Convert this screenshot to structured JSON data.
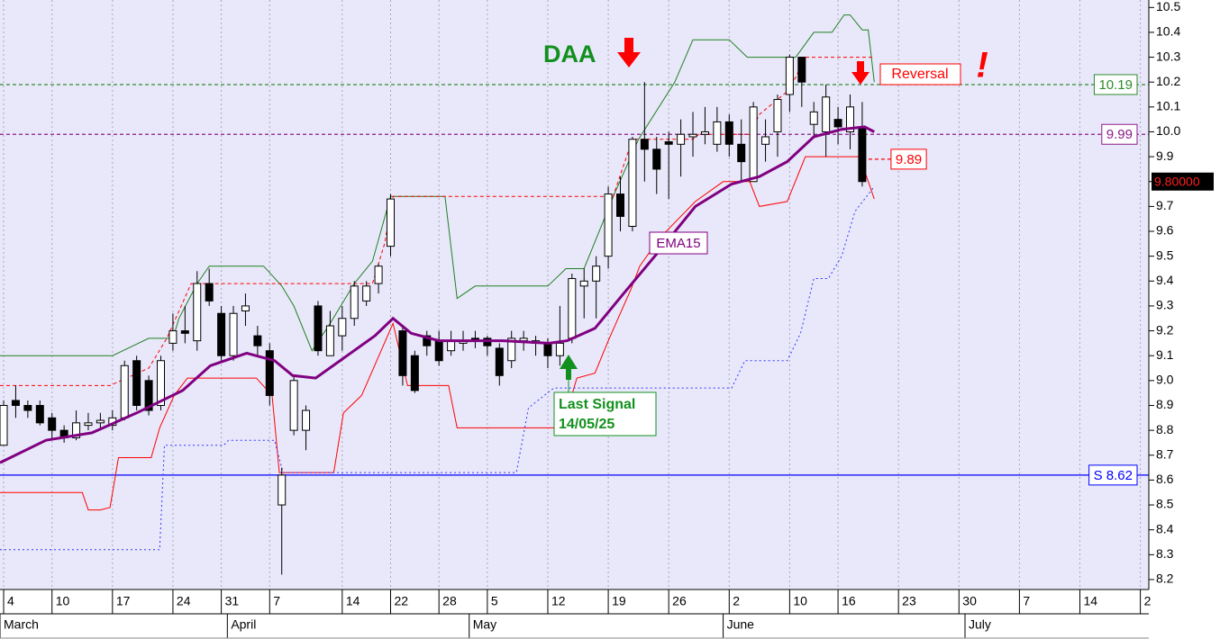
{
  "chart_data": {
    "type": "candlestick",
    "xlim": [
      -0.3,
      94.7
    ],
    "ylim": [
      8.16,
      10.53
    ],
    "yticks": [
      8.2,
      8.3,
      8.4,
      8.5,
      8.6,
      8.7,
      8.8,
      8.9,
      {
        "value": 9,
        "label": "9.0"
      },
      9.1,
      9.2,
      9.3,
      9.4,
      9.5,
      9.6,
      9.7,
      9.8,
      9.9,
      {
        "value": 10,
        "label": "10.0"
      },
      10.1,
      10.2,
      10.3,
      10.4,
      10.5
    ],
    "xticks": [
      {
        "value": 0,
        "label": "4"
      },
      {
        "value": 4,
        "label": "10"
      },
      {
        "value": 9,
        "label": "17"
      },
      {
        "value": 14,
        "label": "24"
      },
      {
        "value": 18,
        "label": "31"
      },
      {
        "value": 22,
        "label": "7"
      },
      {
        "value": 28,
        "label": "14"
      },
      {
        "value": 32,
        "label": "22"
      },
      {
        "value": 36,
        "label": "28"
      },
      {
        "value": 40,
        "label": "5"
      },
      {
        "value": 45,
        "label": "12"
      },
      {
        "value": 50,
        "label": "19"
      },
      {
        "value": 55,
        "label": "26"
      },
      {
        "value": 60,
        "label": "2"
      },
      {
        "value": 65,
        "label": "10"
      },
      {
        "value": 69,
        "label": "16"
      },
      {
        "value": 74,
        "label": "23"
      },
      {
        "value": 79,
        "label": "30"
      },
      {
        "value": 84,
        "label": "7"
      },
      {
        "value": 89,
        "label": "14"
      },
      {
        "value": 94,
        "label": "2"
      }
    ],
    "month_ticks": [
      {
        "value": 0,
        "label": "March"
      },
      {
        "value": 19,
        "label": "April"
      },
      {
        "value": 39,
        "label": "May"
      },
      {
        "value": 60,
        "label": "June"
      },
      {
        "value": 80,
        "label": "July"
      }
    ],
    "grid": true,
    "candles": {
      "x": [
        0,
        1,
        2,
        3,
        4,
        5,
        6,
        7,
        8,
        9,
        10,
        11,
        12,
        13,
        14,
        15,
        16,
        17,
        18,
        19,
        20,
        21,
        22,
        23,
        24,
        25,
        26,
        27,
        28,
        29,
        30,
        31,
        32,
        33,
        34,
        35,
        36,
        37,
        38,
        39,
        40,
        41,
        42,
        43,
        44,
        45,
        46,
        47,
        48,
        49,
        50,
        51,
        52,
        53,
        54,
        55,
        56,
        57,
        58,
        59,
        60,
        61,
        62,
        63,
        64,
        65,
        66,
        67,
        68,
        69,
        70,
        71
      ],
      "open": [
        8.74,
        8.92,
        8.9,
        8.9,
        8.85,
        8.8,
        8.77,
        8.82,
        8.83,
        8.82,
        8.85,
        9.08,
        9.0,
        8.9,
        9.15,
        9.2,
        9.16,
        9.39,
        9.27,
        9.1,
        9.28,
        9.18,
        9.12,
        8.5,
        8.8,
        8.8,
        9.3,
        9.1,
        9.18,
        9.25,
        9.32,
        9.39,
        9.54,
        9.2,
        9.1,
        9.18,
        9.16,
        9.12,
        9.15,
        9.17,
        9.17,
        9.13,
        9.08,
        9.16,
        9.15,
        9.15,
        9.1,
        9.17,
        9.38,
        9.4,
        9.5,
        9.75,
        9.62,
        9.97,
        9.93,
        9.96,
        9.95,
        9.98,
        9.99,
        9.95,
        10.04,
        9.95,
        9.8,
        9.95,
        10.0,
        10.15,
        10.3,
        10.03,
        10.0,
        10.05,
        10.0,
        10.02
      ],
      "high": [
        8.92,
        8.98,
        8.92,
        8.92,
        8.87,
        8.82,
        8.88,
        8.87,
        8.87,
        8.88,
        9.08,
        9.1,
        9.02,
        9.1,
        9.27,
        9.3,
        9.44,
        9.45,
        9.3,
        9.3,
        9.35,
        9.22,
        9.15,
        8.65,
        9.02,
        8.9,
        9.32,
        9.28,
        9.3,
        9.4,
        9.4,
        9.47,
        9.75,
        9.22,
        9.12,
        9.2,
        9.2,
        9.2,
        9.2,
        9.2,
        9.18,
        9.15,
        9.2,
        9.2,
        9.18,
        9.17,
        9.3,
        9.43,
        9.45,
        9.5,
        9.78,
        9.82,
        9.98,
        10.2,
        9.98,
        10.0,
        10.05,
        10.08,
        10.1,
        10.1,
        10.07,
        10.05,
        10.12,
        10.05,
        10.15,
        10.31,
        10.3,
        10.12,
        10.19,
        10.1,
        10.15,
        10.12
      ],
      "low": [
        8.74,
        8.85,
        8.85,
        8.82,
        8.76,
        8.75,
        8.76,
        8.8,
        8.8,
        8.8,
        8.84,
        8.88,
        8.86,
        8.88,
        9.12,
        9.15,
        9.12,
        9.3,
        9.08,
        9.08,
        9.22,
        9.1,
        8.9,
        8.22,
        8.78,
        8.72,
        9.1,
        9.1,
        9.12,
        9.22,
        9.3,
        9.35,
        9.5,
        8.98,
        8.95,
        9.1,
        9.06,
        9.1,
        9.12,
        9.13,
        9.1,
        8.98,
        9.05,
        9.12,
        9.1,
        9.05,
        9.06,
        9.15,
        9.25,
        9.25,
        9.45,
        9.6,
        9.6,
        9.8,
        9.75,
        9.73,
        9.82,
        9.9,
        9.95,
        9.92,
        9.9,
        9.8,
        9.8,
        9.88,
        9.9,
        10.08,
        10.1,
        9.98,
        9.9,
        9.95,
        9.93,
        9.78
      ],
      "close": [
        8.9,
        8.9,
        8.88,
        8.83,
        8.8,
        8.77,
        8.83,
        8.83,
        8.84,
        8.85,
        9.06,
        8.9,
        8.88,
        9.08,
        9.2,
        9.19,
        9.39,
        9.32,
        9.1,
        9.27,
        9.3,
        9.14,
        8.94,
        8.62,
        9.0,
        8.88,
        9.12,
        9.22,
        9.25,
        9.38,
        9.38,
        9.46,
        9.73,
        9.02,
        8.96,
        9.14,
        9.08,
        9.16,
        9.16,
        9.16,
        9.14,
        9.02,
        9.17,
        9.17,
        9.16,
        9.1,
        9.15,
        9.41,
        9.4,
        9.46,
        9.75,
        9.66,
        9.97,
        9.93,
        9.85,
        9.95,
        9.99,
        9.99,
        10.0,
        10.04,
        9.95,
        9.88,
        10.1,
        9.98,
        10.13,
        10.3,
        10.2,
        10.08,
        10.14,
        10.02,
        10.1,
        9.8
      ]
    },
    "lines": [
      {
        "color": "#208020",
        "style": "solid",
        "width": 1,
        "x": [
          -0.3,
          9,
          12,
          14,
          14.5,
          16,
          17,
          21.5,
          23,
          24,
          25.5,
          27,
          29,
          30.5,
          32,
          36.5,
          37.5,
          39,
          45,
          46.5,
          48,
          50.5,
          52.5,
          55.5,
          57,
          60,
          61.5,
          65.5,
          67,
          68.5,
          69.5,
          70,
          71,
          71.5,
          72
        ],
        "values": [
          9.1,
          9.1,
          9.17,
          9.17,
          9.25,
          9.39,
          9.46,
          9.46,
          9.38,
          9.3,
          9.12,
          9.23,
          9.39,
          9.48,
          9.74,
          9.74,
          9.33,
          9.38,
          9.38,
          9.45,
          9.45,
          9.75,
          9.97,
          10.2,
          10.37,
          10.37,
          10.3,
          10.3,
          10.4,
          10.4,
          10.47,
          10.47,
          10.41,
          10.41,
          10.2
        ]
      },
      {
        "color": "#ff0000",
        "style": "solid",
        "width": 1,
        "x": [
          -0.3,
          6.5,
          7,
          8,
          8.8,
          9.5,
          12.2,
          12.9,
          14.1,
          15.2,
          20.9,
          22.2,
          22.8,
          27.3,
          28.1,
          29.6,
          32.2,
          33.4,
          36.8,
          37.5,
          46.2,
          47.4,
          48.9,
          50,
          51.9,
          52.6,
          54.2,
          57.2,
          59.5,
          61.7,
          62.5,
          64.8,
          66.3,
          70.8,
          72
        ],
        "values": [
          8.55,
          8.55,
          8.48,
          8.48,
          8.49,
          8.69,
          8.69,
          8.81,
          8.94,
          9.01,
          9.01,
          8.94,
          8.63,
          8.63,
          8.87,
          8.94,
          9.23,
          8.98,
          8.98,
          8.81,
          8.81,
          9.01,
          9.03,
          9.16,
          9.37,
          9.46,
          9.57,
          9.72,
          9.8,
          9.8,
          9.7,
          9.72,
          9.9,
          9.9,
          9.73
        ]
      },
      {
        "color": "#3333ff",
        "style": "dotted",
        "width": 1,
        "x": [
          -0.3,
          12.9,
          13.3,
          18.2,
          18.6,
          22.4,
          23.1,
          42.4,
          43.4,
          45.5,
          60.2,
          61.3,
          64.8,
          65.9,
          67,
          68.2,
          69.3,
          70.4,
          72
        ],
        "values": [
          8.32,
          8.32,
          8.74,
          8.74,
          8.76,
          8.76,
          8.63,
          8.63,
          8.89,
          8.97,
          8.97,
          9.08,
          9.08,
          9.19,
          9.41,
          9.41,
          9.5,
          9.68,
          9.78
        ]
      },
      {
        "color": "#ff0000",
        "style": "dashed",
        "width": 1,
        "x": [
          -0.3,
          8.8,
          12,
          13.5,
          15.5,
          30.5,
          31.5,
          32.2,
          50.4,
          52,
          57,
          57.5,
          61.7,
          62.5,
          65,
          66.3,
          72
        ],
        "values": [
          8.98,
          8.98,
          9.05,
          9.17,
          9.39,
          9.39,
          9.55,
          9.74,
          9.74,
          9.97,
          9.97,
          9.99,
          9.99,
          10.07,
          10.17,
          10.3,
          10.3
        ]
      },
      {
        "color": "#800080",
        "style": "solid",
        "width": 3,
        "x": [
          -0.3,
          3.5,
          7.3,
          11,
          14.8,
          17.1,
          20.1,
          22.4,
          23.9,
          25.8,
          28.4,
          30.7,
          32.2,
          33.7,
          36,
          41.3,
          45.1,
          46.6,
          48.9,
          51.1,
          54.2,
          57.2,
          60.2,
          62.5,
          64.8,
          67,
          69.3,
          71.2,
          72
        ],
        "values": [
          8.67,
          8.76,
          8.79,
          8.87,
          8.96,
          9.06,
          9.11,
          9.08,
          9.02,
          9.01,
          9.1,
          9.18,
          9.25,
          9.19,
          9.16,
          9.16,
          9.15,
          9.16,
          9.21,
          9.34,
          9.52,
          9.7,
          9.79,
          9.82,
          9.88,
          9.98,
          10.01,
          10.02,
          10.0
        ]
      }
    ],
    "levels": [
      {
        "value": 10.19,
        "color": "#2e8b2e",
        "style": "dashed",
        "span": "full"
      },
      {
        "value": 9.99,
        "color": "#8b1a8b",
        "style": "dashed",
        "span": "full"
      },
      {
        "value": 8.62,
        "label": "S 8.62",
        "color": "#0000ff",
        "style": "solid",
        "span": "full"
      },
      {
        "value": 9.89,
        "color": "#ff0000",
        "style": "dashed",
        "span": "partial"
      }
    ],
    "last_price": {
      "value": 9.8,
      "label": "9.80000"
    },
    "annotations": [
      "DAA",
      "Reversal",
      "!",
      "EMA15",
      "Last Signal",
      "14/05/25"
    ]
  }
}
